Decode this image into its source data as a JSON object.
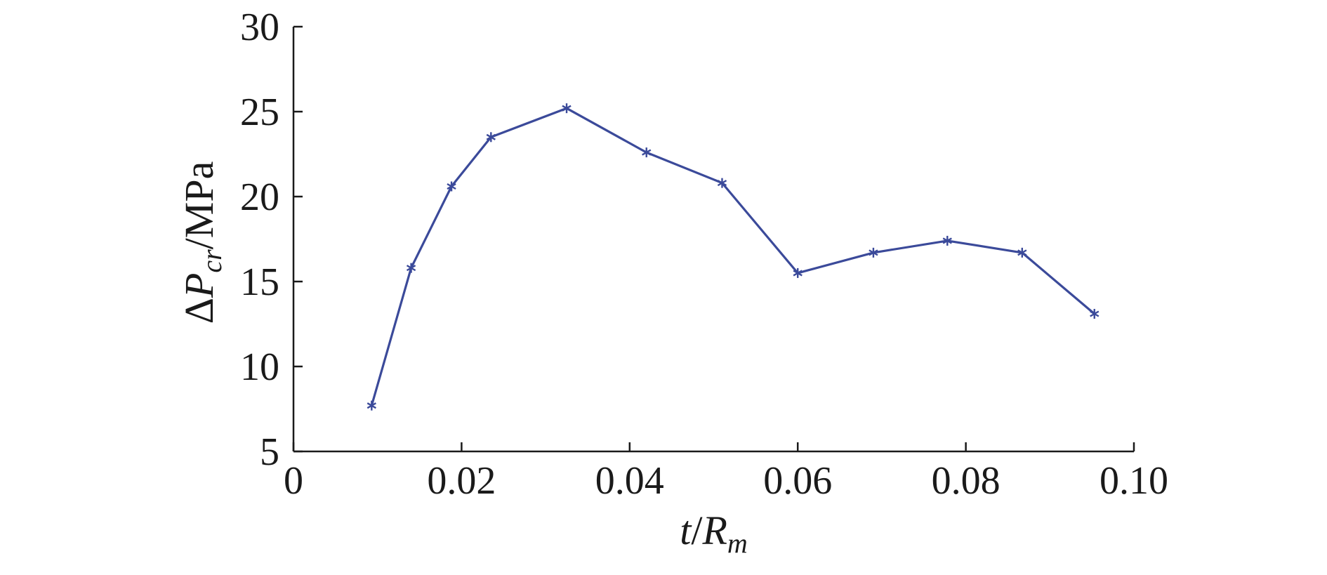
{
  "chart_data": {
    "type": "line",
    "title": "",
    "xlabel": {
      "var": "t",
      "sep": "/",
      "main": "R",
      "sub": "m"
    },
    "ylabel": {
      "prefix": "Δ",
      "main": "P",
      "sub": "cr",
      "unit": "/MPa"
    },
    "xlim": [
      0,
      0.1
    ],
    "ylim": [
      5,
      30
    ],
    "xticks": [
      0,
      0.02,
      0.04,
      0.06,
      0.08,
      0.1
    ],
    "xtick_labels": [
      "0",
      "0.02",
      "0.04",
      "0.06",
      "0.08",
      "0.10"
    ],
    "yticks": [
      5,
      10,
      15,
      20,
      25,
      30
    ],
    "ytick_labels": [
      "5",
      "10",
      "15",
      "20",
      "25",
      "30"
    ],
    "grid": false,
    "series": [
      {
        "color": "#3b4a9a",
        "marker": "star-icon",
        "x": [
          0.0093,
          0.014,
          0.0188,
          0.0235,
          0.0325,
          0.042,
          0.051,
          0.06,
          0.069,
          0.0778,
          0.0867,
          0.0953
        ],
        "y": [
          7.7,
          15.8,
          20.6,
          23.5,
          25.2,
          22.6,
          20.8,
          15.5,
          16.7,
          17.4,
          16.7,
          13.1
        ]
      }
    ]
  }
}
